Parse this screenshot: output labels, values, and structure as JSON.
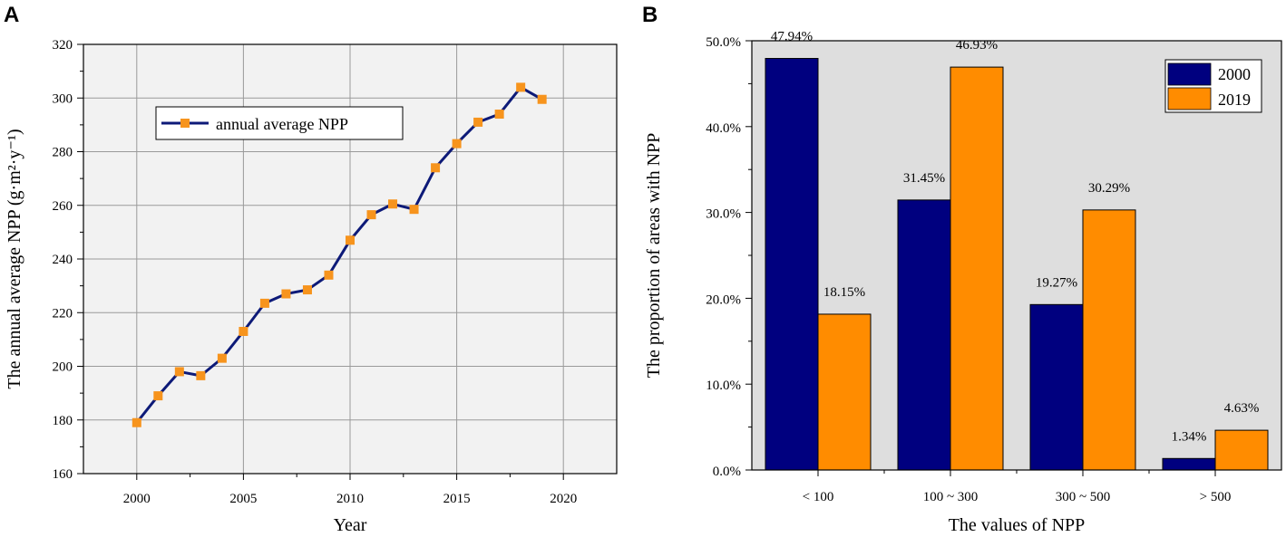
{
  "chart_data": [
    {
      "panel": "A",
      "type": "line",
      "title": "",
      "xlabel": "Year",
      "ylabel": "The annual average NPP (g·m²·y⁻¹)",
      "xlim": [
        1997.5,
        2022.5
      ],
      "ylim": [
        160,
        320
      ],
      "xticks": [
        2000,
        2005,
        2010,
        2015,
        2020
      ],
      "yticks": [
        160,
        180,
        200,
        220,
        240,
        260,
        280,
        300,
        320
      ],
      "grid": true,
      "legend_position": "upper-left",
      "series": [
        {
          "name": "annual average NPP",
          "color": "#0d1a78",
          "marker_color": "#f7941d",
          "x": [
            2000,
            2001,
            2002,
            2003,
            2004,
            2005,
            2006,
            2007,
            2008,
            2009,
            2010,
            2011,
            2012,
            2013,
            2014,
            2015,
            2016,
            2017,
            2018,
            2019
          ],
          "y": [
            179,
            189,
            198,
            196.5,
            203,
            213,
            223.5,
            227,
            228.5,
            234,
            247,
            256.5,
            260.5,
            258.5,
            274,
            283,
            291,
            294,
            304,
            299.5
          ]
        }
      ]
    },
    {
      "panel": "B",
      "type": "bar",
      "title": "",
      "xlabel": "The values of NPP",
      "ylabel": "The proportion of areas with NPP",
      "ylim": [
        0,
        0.5
      ],
      "yticks": [
        0,
        10,
        20,
        30,
        40,
        50
      ],
      "ytick_labels": [
        "0.0%",
        "10.0%",
        "20.0%",
        "30.0%",
        "40.0%",
        "50.0%"
      ],
      "categories": [
        "< 100",
        "100 ~ 300",
        "300 ~ 500",
        "> 500"
      ],
      "legend_position": "top-right",
      "series": [
        {
          "name": "2000",
          "color": "#00007f",
          "values": [
            47.94,
            31.45,
            19.27,
            1.34
          ],
          "labels": [
            "47.94%",
            "31.45%",
            "19.27%",
            "1.34%"
          ]
        },
        {
          "name": "2019",
          "color": "#ff8c00",
          "values": [
            18.15,
            46.93,
            30.29,
            4.63
          ],
          "labels": [
            "18.15%",
            "46.93%",
            "30.29%",
            "4.63%"
          ]
        }
      ]
    }
  ]
}
